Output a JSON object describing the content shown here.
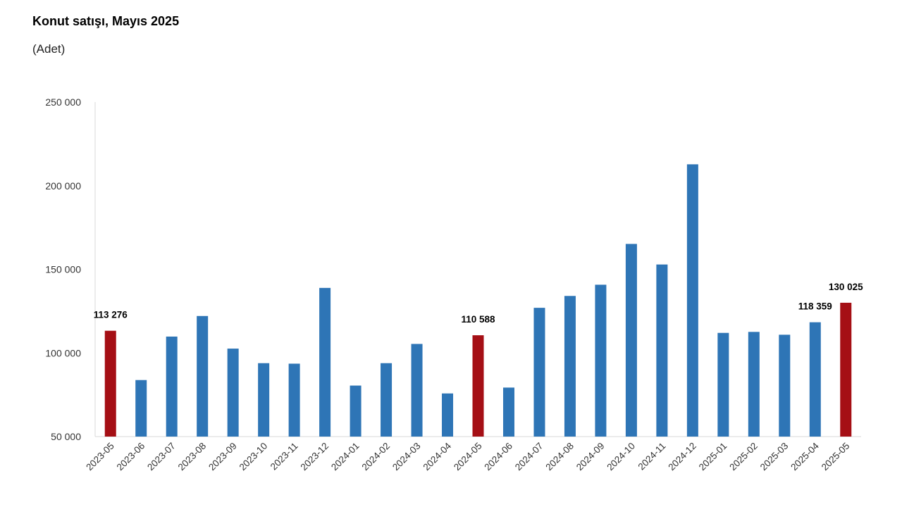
{
  "chart_data": {
    "type": "bar",
    "title": "Konut satışı, Mayıs 2025",
    "subtitle": "(Adet)",
    "xlabel": "",
    "ylabel": "",
    "ylim": [
      50000,
      250000
    ],
    "yticks": [
      50000,
      100000,
      150000,
      200000,
      250000
    ],
    "ytick_labels": [
      "50 000",
      "100 000",
      "150 000",
      "200 000",
      "250 000"
    ],
    "grid": false,
    "legend": "none",
    "colors": {
      "default": "#2e75b6",
      "highlight": "#a50f15"
    },
    "categories": [
      "2023-05",
      "2023-06",
      "2023-07",
      "2023-08",
      "2023-09",
      "2023-10",
      "2023-11",
      "2023-12",
      "2024-01",
      "2024-02",
      "2024-03",
      "2024-04",
      "2024-05",
      "2024-06",
      "2024-07",
      "2024-08",
      "2024-09",
      "2024-10",
      "2024-11",
      "2024-12",
      "2025-01",
      "2025-02",
      "2025-03",
      "2025-04",
      "2025-05"
    ],
    "values": [
      113276,
      83800,
      109800,
      122100,
      102600,
      93900,
      93600,
      138900,
      80500,
      93900,
      105400,
      75800,
      110588,
      79300,
      127000,
      134100,
      140800,
      165200,
      152900,
      212800,
      112000,
      112600,
      110900,
      118359,
      130025
    ],
    "highlighted": [
      0,
      12,
      24
    ],
    "data_labels": [
      {
        "index": 0,
        "text": "113 276"
      },
      {
        "index": 12,
        "text": "110 588"
      },
      {
        "index": 23,
        "text": "118 359"
      },
      {
        "index": 24,
        "text": "130 025"
      }
    ]
  }
}
